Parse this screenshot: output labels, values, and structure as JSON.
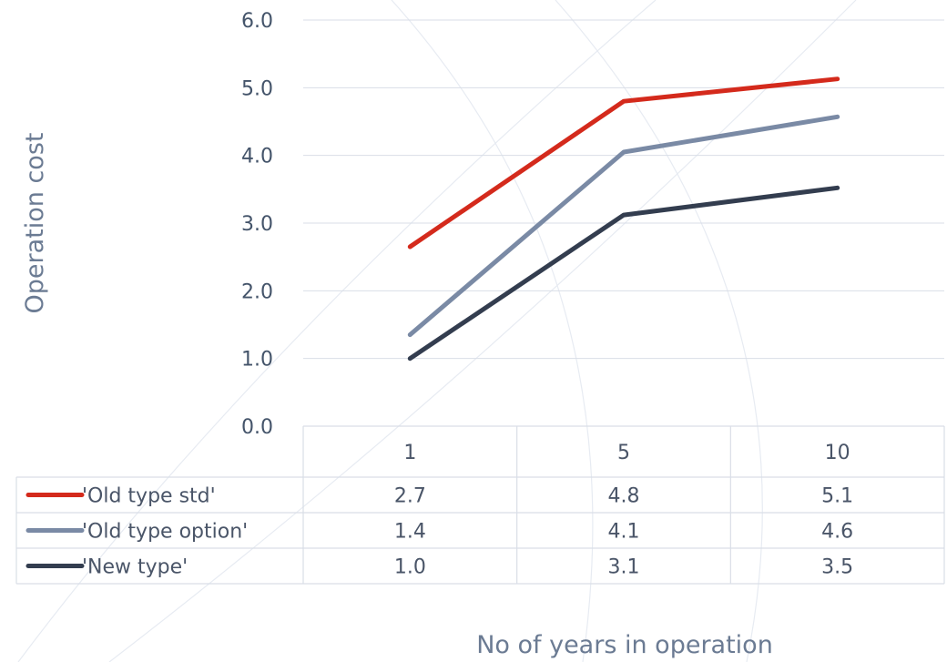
{
  "chart_data": {
    "type": "line",
    "title": "",
    "xlabel": "No of years in operation",
    "ylabel": "Operation cost",
    "categories": [
      "1",
      "5",
      "10"
    ],
    "ylim": [
      0,
      6
    ],
    "yticks": [
      "0.0",
      "1.0",
      "2.0",
      "3.0",
      "4.0",
      "5.0",
      "6.0"
    ],
    "grid": true,
    "legend": "data-table",
    "series": [
      {
        "name": "'Old type std'",
        "color": "#d42a1c",
        "values": [
          2.65,
          4.8,
          5.13
        ],
        "labels": [
          "2.7",
          "4.8",
          "5.1"
        ]
      },
      {
        "name": "'Old type option'",
        "color": "#7a8aa5",
        "values": [
          1.35,
          4.05,
          4.57
        ],
        "labels": [
          "1.4",
          "4.1",
          "4.6"
        ]
      },
      {
        "name": "'New type'",
        "color": "#333d4f",
        "values": [
          1.0,
          3.12,
          3.52
        ],
        "labels": [
          "1.0",
          "3.1",
          "3.5"
        ]
      }
    ]
  }
}
